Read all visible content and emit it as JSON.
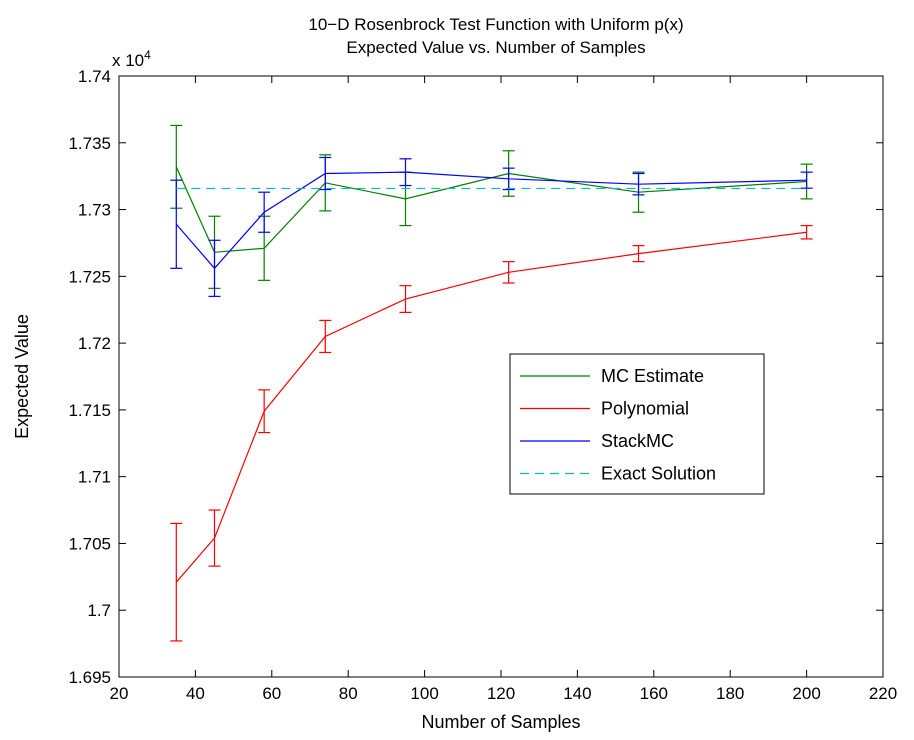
{
  "chart_data": {
    "type": "line",
    "title": [
      "10−D Rosenbrock Test Function with Uniform p(x)",
      "Expected Value vs. Number of Samples"
    ],
    "xlabel": "Number of Samples",
    "ylabel": "Expected Value",
    "y_multiplier_base": "x 10",
    "y_multiplier_exp": "4",
    "xlim": [
      20,
      220
    ],
    "ylim": [
      1.695,
      1.74
    ],
    "x_ticks": [
      20,
      40,
      60,
      80,
      100,
      120,
      140,
      160,
      180,
      200,
      220
    ],
    "y_ticks": [
      1.695,
      1.7,
      1.705,
      1.71,
      1.715,
      1.72,
      1.725,
      1.73,
      1.735,
      1.74
    ],
    "y_tick_labels": [
      "1.695",
      "1.7",
      "1.705",
      "1.71",
      "1.715",
      "1.72",
      "1.725",
      "1.73",
      "1.735",
      "1.74"
    ],
    "grid": false,
    "legend_position": "center-right",
    "x": [
      35,
      45,
      58,
      74,
      95,
      122,
      156,
      200
    ],
    "series": [
      {
        "name": "MC Estimate",
        "color": "#008000",
        "dash": "solid",
        "values": [
          1.7332,
          1.7268,
          1.7271,
          1.732,
          1.7308,
          1.7327,
          1.7313,
          1.7321
        ],
        "err": [
          0.0031,
          0.0027,
          0.0024,
          0.0021,
          0.002,
          0.0017,
          0.0015,
          0.0013
        ]
      },
      {
        "name": "Polynomial",
        "color": "#ff0000",
        "dash": "solid",
        "values": [
          1.7021,
          1.7054,
          1.7149,
          1.7205,
          1.7233,
          1.7253,
          1.7267,
          1.7283
        ],
        "err": [
          0.0044,
          0.0021,
          0.0016,
          0.0012,
          0.001,
          0.0008,
          0.0006,
          0.0005
        ]
      },
      {
        "name": "StackMC",
        "color": "#0000ff",
        "dash": "solid",
        "values": [
          1.7289,
          1.7256,
          1.7298,
          1.7327,
          1.7328,
          1.7323,
          1.7319,
          1.7322
        ],
        "err": [
          0.0033,
          0.0021,
          0.0015,
          0.0012,
          0.001,
          0.0008,
          0.0008,
          0.0006
        ]
      },
      {
        "name": "Exact Solution",
        "color": "#00bfbf",
        "dash": "dashed",
        "values": [
          1.73158,
          1.73158,
          1.73158,
          1.73158,
          1.73158,
          1.73158,
          1.73158,
          1.73158
        ],
        "err": null
      }
    ]
  }
}
